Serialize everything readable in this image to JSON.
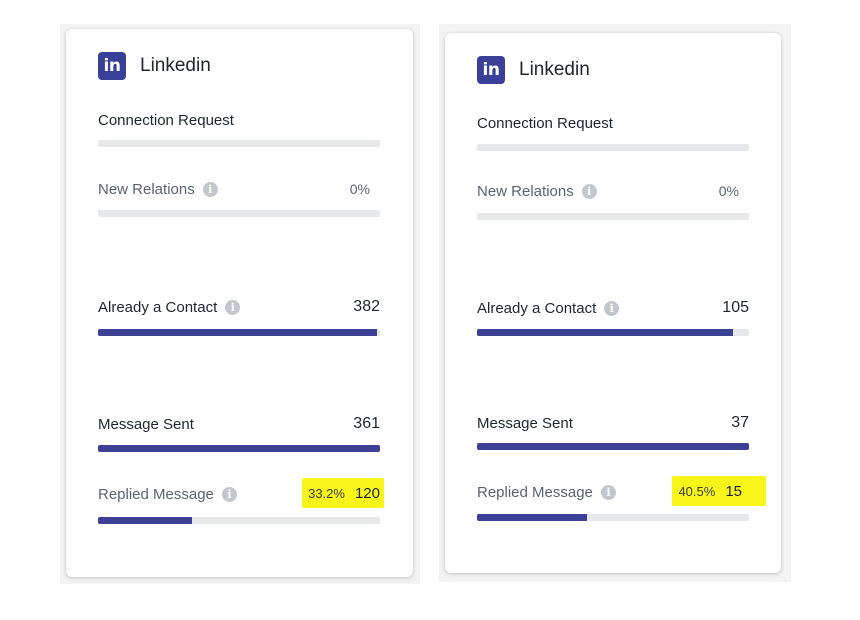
{
  "cards": [
    {
      "title": "Linkedin",
      "logo_text": "in",
      "connection_request": {
        "label": "Connection Request",
        "progress": 0
      },
      "new_relations": {
        "label": "New Relations",
        "value": "0%",
        "progress": 0
      },
      "already_contact": {
        "label": "Already a Contact",
        "value": "382",
        "progress": 0.99
      },
      "message_sent": {
        "label": "Message Sent",
        "value": "361",
        "progress": 1.0
      },
      "replied_message": {
        "label": "Replied Message",
        "percent": "33.2%",
        "count": "120",
        "progress": 0.332
      }
    },
    {
      "title": "Linkedin",
      "logo_text": "in",
      "connection_request": {
        "label": "Connection Request",
        "progress": 0
      },
      "new_relations": {
        "label": "New Relations",
        "value": "0%",
        "progress": 0
      },
      "already_contact": {
        "label": "Already a Contact",
        "value": "105",
        "progress": 0.94
      },
      "message_sent": {
        "label": "Message Sent",
        "value": "37",
        "progress": 1.0
      },
      "replied_message": {
        "label": "Replied Message",
        "percent": "40.5%",
        "count": "15",
        "progress": 0.405
      }
    }
  ],
  "info_icon_glyph": "i",
  "colors": {
    "accent": "#3c4195",
    "track": "#e7e8ea",
    "highlight": "#f7f51a",
    "brand": "#3a3f98"
  }
}
